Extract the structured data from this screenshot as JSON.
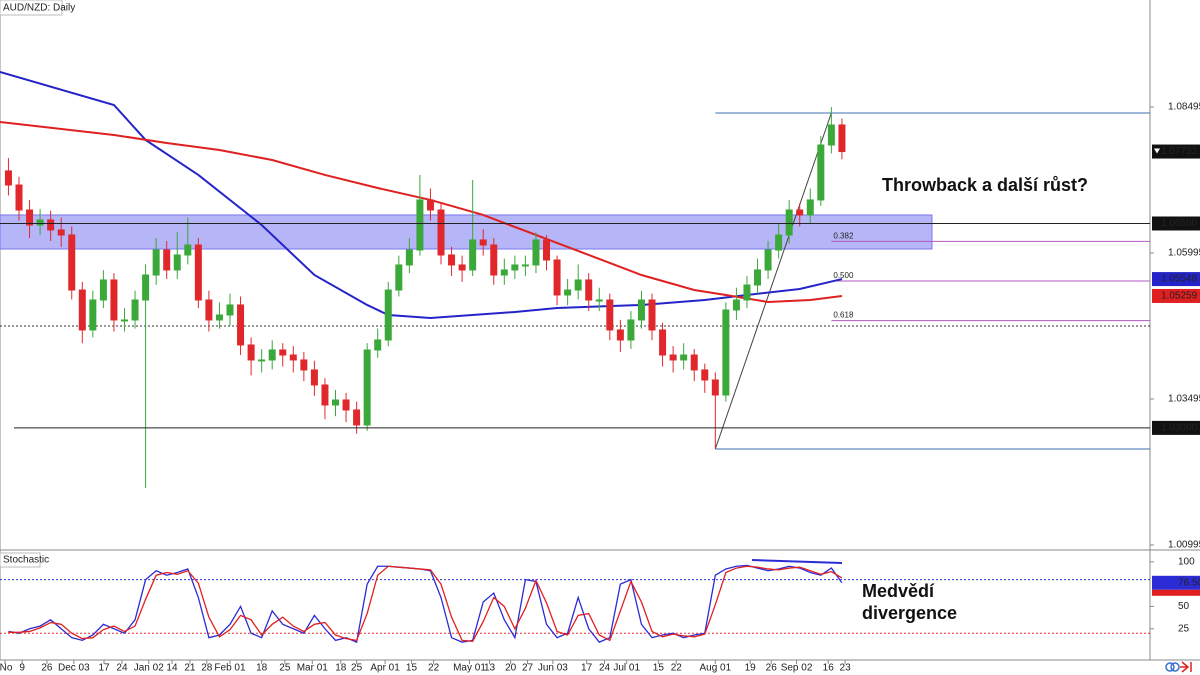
{
  "chart_data": [
    {
      "type": "candlestick",
      "title": "AUD/NZD: Daily",
      "xlim": [
        -0.8,
        108.2
      ],
      "ylim": [
        1.00909,
        1.10327
      ],
      "yticks": [
        1.08495,
        1.05995,
        1.03495,
        1.00995
      ],
      "up_color": "#3aa93a",
      "down_color": "#e0282c",
      "x": [
        0,
        1,
        2,
        3,
        4,
        5,
        6,
        7,
        8,
        9,
        10,
        11,
        12,
        13,
        14,
        15,
        16,
        17,
        18,
        19,
        20,
        21,
        22,
        23,
        24,
        25,
        26,
        27,
        28,
        29,
        30,
        31,
        32,
        33,
        34,
        35,
        36,
        37,
        38,
        39,
        40,
        41,
        42,
        43,
        44,
        45,
        46,
        47,
        48,
        49,
        50,
        51,
        52,
        53,
        54,
        55,
        56,
        57,
        58,
        59,
        60,
        61,
        62,
        63,
        64,
        65,
        66,
        67,
        68,
        69,
        70,
        71,
        72,
        73,
        74,
        75,
        76,
        77,
        78,
        79
      ],
      "open": [
        1.074,
        1.07159,
        1.06731,
        1.06474,
        1.0656,
        1.06389,
        1.06303,
        1.05361,
        1.04677,
        1.0519,
        1.05533,
        1.04848,
        1.04848,
        1.0519,
        1.05618,
        1.06046,
        1.05704,
        1.05961,
        1.06132,
        1.0519,
        1.04848,
        1.04933,
        1.05105,
        1.0442,
        1.04163,
        1.04163,
        1.04334,
        1.04248,
        1.04163,
        1.03992,
        1.03735,
        1.03392,
        1.03478,
        1.03307,
        1.0305,
        1.04334,
        1.04505,
        1.05361,
        1.0579,
        1.06046,
        1.06903,
        1.06731,
        1.05961,
        1.0579,
        1.05704,
        1.06218,
        1.06132,
        1.05618,
        1.05704,
        1.0579,
        1.0579,
        1.06218,
        1.05875,
        1.05276,
        1.05361,
        1.05533,
        1.0519,
        1.0519,
        1.04677,
        1.04505,
        1.04848,
        1.0519,
        1.04677,
        1.04248,
        1.04163,
        1.04248,
        1.03992,
        1.0382,
        1.03563,
        1.05019,
        1.0519,
        1.05447,
        1.05704,
        1.06046,
        1.06303,
        1.06731,
        1.06646,
        1.06903,
        1.07844,
        1.08187
      ],
      "high": [
        1.0762,
        1.073,
        1.069,
        1.0675,
        1.0672,
        1.066,
        1.0645,
        1.055,
        1.0535,
        1.057,
        1.0565,
        1.0505,
        1.0535,
        1.058,
        1.0625,
        1.062,
        1.0635,
        1.066,
        1.0625,
        1.0535,
        1.0515,
        1.053,
        1.0525,
        1.0455,
        1.0435,
        1.045,
        1.0445,
        1.044,
        1.043,
        1.0415,
        1.0385,
        1.0365,
        1.036,
        1.0345,
        1.0445,
        1.047,
        1.055,
        1.0595,
        1.0625,
        1.07331,
        1.071,
        1.0685,
        1.061,
        1.0595,
        1.07245,
        1.064,
        1.0625,
        1.059,
        1.0595,
        1.0595,
        1.0635,
        1.063,
        1.0595,
        1.0555,
        1.058,
        1.0565,
        1.054,
        1.053,
        1.0485,
        1.05,
        1.0535,
        1.053,
        1.048,
        1.044,
        1.0445,
        1.0435,
        1.041,
        1.0395,
        1.0515,
        1.054,
        1.056,
        1.059,
        1.062,
        1.065,
        1.069,
        1.0685,
        1.071,
        1.08,
        1.08495,
        1.083
      ],
      "low": [
        1.0698,
        1.0655,
        1.0625,
        1.063,
        1.062,
        1.061,
        1.052,
        1.0445,
        1.0455,
        1.0505,
        1.0465,
        1.0465,
        1.047,
        1.01971,
        1.0545,
        1.0555,
        1.0555,
        1.058,
        1.0505,
        1.0465,
        1.047,
        1.0475,
        1.0425,
        1.039,
        1.0395,
        1.04,
        1.0405,
        1.0395,
        1.038,
        1.0355,
        1.0315,
        1.032,
        1.031,
        1.029,
        1.0295,
        1.042,
        1.044,
        1.0525,
        1.0565,
        1.0595,
        1.0655,
        1.058,
        1.056,
        1.055,
        1.056,
        1.0595,
        1.0545,
        1.0545,
        1.0555,
        1.056,
        1.0565,
        1.057,
        1.051,
        1.051,
        1.052,
        1.05,
        1.05,
        1.045,
        1.043,
        1.0435,
        1.047,
        1.045,
        1.0405,
        1.0395,
        1.04,
        1.038,
        1.036,
        1.02639,
        1.0345,
        1.0485,
        1.0505,
        1.053,
        1.0555,
        1.059,
        1.0615,
        1.0645,
        1.065,
        1.068,
        1.077,
        1.076
      ],
      "close": [
        1.07159,
        1.06731,
        1.06474,
        1.0656,
        1.06389,
        1.06303,
        1.05361,
        1.04677,
        1.0519,
        1.05533,
        1.04848,
        1.04848,
        1.0519,
        1.05618,
        1.06046,
        1.05704,
        1.05961,
        1.06132,
        1.0519,
        1.04848,
        1.04933,
        1.05105,
        1.0442,
        1.04163,
        1.04163,
        1.04334,
        1.04248,
        1.04163,
        1.03992,
        1.03735,
        1.03392,
        1.03478,
        1.03307,
        1.0305,
        1.04334,
        1.04505,
        1.05361,
        1.0579,
        1.06046,
        1.06903,
        1.06731,
        1.05961,
        1.0579,
        1.05704,
        1.06218,
        1.06132,
        1.05618,
        1.05704,
        1.0579,
        1.0579,
        1.06218,
        1.05875,
        1.05276,
        1.05361,
        1.05533,
        1.0519,
        1.0519,
        1.04677,
        1.04505,
        1.04848,
        1.0519,
        1.04677,
        1.04248,
        1.04163,
        1.04248,
        1.03992,
        1.0382,
        1.03563,
        1.05019,
        1.0519,
        1.05447,
        1.05704,
        1.06046,
        1.06303,
        1.06731,
        1.06646,
        1.06903,
        1.07844,
        1.08187,
        1.07732
      ],
      "overlays": [
        {
          "color": "#2424c8",
          "x": [
            -0.8,
            10,
            13,
            18,
            24,
            29,
            34,
            36,
            40,
            48,
            52,
            60,
            66,
            70,
            75,
            79
          ],
          "values": [
            1.09094,
            1.08529,
            1.0793,
            1.07331,
            1.06474,
            1.05618,
            1.05105,
            1.04933,
            1.04882,
            1.04985,
            1.05053,
            1.05105,
            1.0519,
            1.05276,
            1.05379,
            1.05548
          ]
        },
        {
          "color": "#e02020",
          "x": [
            -0.8,
            10,
            15,
            20,
            25,
            30,
            35,
            40,
            45,
            50,
            55,
            60,
            65,
            68,
            72,
            76,
            79
          ],
          "values": [
            1.08238,
            1.08016,
            1.07879,
            1.07759,
            1.07587,
            1.07331,
            1.07108,
            1.06903,
            1.06646,
            1.06303,
            1.05961,
            1.05618,
            1.05361,
            1.05276,
            1.05156,
            1.0519,
            1.05259
          ]
        }
      ],
      "zone": [
        1.06063,
        1.06646
      ],
      "zone_color": "#7878f0",
      "dotted_level": 1.04745,
      "price_labels": [
        {
          "value": 1.07732,
          "color": "#111111"
        },
        {
          "value": {
            "value": 1.065,
            "label": "1.06500"
          },
          "color": "#111111",
          "line": true
        },
        {
          "value": 1.05548,
          "color": "#2424c8"
        },
        {
          "value": 1.05259,
          "color": "#e02020"
        },
        {
          "value": {
            "value": 1.03,
            "label": "1.03000"
          },
          "color": "#111111",
          "line": true
        }
      ],
      "fib": {
        "high": 1.08392,
        "low": 1.02639,
        "x": [
          67,
          78
        ],
        "color": "#b05ac0",
        "edge_color": "#3a6fb0",
        "levels": [
          0.382,
          {
            "value": 0.5,
            "label": "0.500"
          },
          0.618
        ]
      },
      "annotation": "Throwback a další růst?"
    },
    {
      "type": "line",
      "title": "Stochastic",
      "xlim": [
        -0.8,
        108.2
      ],
      "ylim": [
        -10,
        111
      ],
      "yticks": [
        100,
        50,
        25
      ],
      "x": [
        0,
        1,
        2,
        3,
        4,
        5,
        6,
        7,
        8,
        9,
        10,
        11,
        12,
        13,
        14,
        15,
        16,
        17,
        18,
        19,
        20,
        21,
        22,
        23,
        24,
        25,
        26,
        27,
        28,
        29,
        30,
        31,
        32,
        33,
        34,
        35,
        36,
        37,
        38,
        39,
        40,
        41,
        42,
        43,
        44,
        45,
        46,
        47,
        48,
        49,
        50,
        51,
        52,
        53,
        54,
        55,
        56,
        57,
        58,
        59,
        60,
        61,
        62,
        63,
        64,
        65,
        66,
        67,
        68,
        69,
        70,
        71,
        72,
        73,
        74,
        75,
        76,
        77,
        78,
        79
      ],
      "series": [
        {
          "color": "#2c2cd6",
          "values": [
            22,
            20,
            25,
            28,
            35,
            25,
            15,
            12,
            18,
            30,
            25,
            20,
            35,
            80,
            90,
            85,
            88,
            92,
            60,
            15,
            18,
            30,
            50,
            20,
            15,
            45,
            30,
            25,
            20,
            40,
            25,
            12,
            15,
            10,
            75,
            95,
            95,
            94,
            93,
            92,
            90,
            60,
            15,
            10,
            12,
            55,
            65,
            35,
            15,
            80,
            78,
            30,
            15,
            20,
            60,
            25,
            10,
            15,
            75,
            80,
            30,
            15,
            18,
            20,
            15,
            18,
            20,
            85,
            92,
            95,
            96,
            93,
            90,
            92,
            95,
            93,
            88,
            85,
            93,
            76.5
          ]
        },
        {
          "color": "#e02020",
          "values": [
            21,
            21,
            22,
            26,
            32,
            30,
            20,
            14,
            15,
            24,
            28,
            22,
            28,
            58,
            85,
            88,
            86,
            90,
            76,
            38,
            16,
            24,
            40,
            35,
            18,
            30,
            38,
            28,
            22,
            30,
            32,
            18,
            14,
            12,
            42,
            85,
            95,
            94,
            93,
            92,
            91,
            75,
            38,
            12,
            11,
            33,
            60,
            50,
            25,
            48,
            79,
            54,
            22,
            18,
            40,
            42,
            18,
            12,
            45,
            78,
            55,
            22,
            16,
            19,
            17,
            16,
            19,
            52,
            88,
            93,
            95,
            94,
            92,
            91,
            93,
            94,
            90,
            86,
            89,
            82
          ]
        }
      ],
      "levels": [
        {
          "value": 80,
          "color": "#3333cc"
        },
        {
          "value": 20,
          "color": "#e03030"
        }
      ],
      "current": {
        "value": {
          "value": 76.5,
          "label": "76.50"
        },
        "color": "#2c2cd6"
      },
      "xticks": [
        {
          "value": -0.33,
          "label": "No"
        },
        {
          "value": 1.3,
          "label": "9"
        },
        {
          "value": 3.65,
          "label": "26"
        },
        {
          "value": 6.2,
          "label": "Dec 03"
        },
        {
          "value": 9.06,
          "label": "17"
        },
        {
          "value": 10.76,
          "label": "24"
        },
        {
          "value": 13.3,
          "label": "Jan 02"
        },
        {
          "value": 15.5,
          "label": "14"
        },
        {
          "value": 17.2,
          "label": "21"
        },
        {
          "value": 18.8,
          "label": "28"
        },
        {
          "value": 21.0,
          "label": "Feb 01"
        },
        {
          "value": 24.0,
          "label": "18"
        },
        {
          "value": 26.2,
          "label": "25"
        },
        {
          "value": 28.8,
          "label": "Mar 01"
        },
        {
          "value": 31.5,
          "label": "18"
        },
        {
          "value": 33.0,
          "label": "25"
        },
        {
          "value": 35.7,
          "label": "Apr 01"
        },
        {
          "value": 38.2,
          "label": "15"
        },
        {
          "value": 40.3,
          "label": "22"
        },
        {
          "value": 43.7,
          "label": "May 01"
        },
        {
          "value": 45.6,
          "label": "13"
        },
        {
          "value": 47.6,
          "label": "20"
        },
        {
          "value": 49.2,
          "label": "27"
        },
        {
          "value": 51.6,
          "label": "Jun 03"
        },
        {
          "value": 54.8,
          "label": "17"
        },
        {
          "value": 56.5,
          "label": "24"
        },
        {
          "value": 58.6,
          "label": "Jul 01"
        },
        {
          "value": 61.6,
          "label": "15"
        },
        {
          "value": 63.3,
          "label": "22"
        },
        {
          "value": 67.0,
          "label": "Aug 01"
        },
        {
          "value": 70.3,
          "label": "19"
        },
        {
          "value": 72.3,
          "label": "26"
        },
        {
          "value": 74.7,
          "label": "Sep 02"
        },
        {
          "value": 77.7,
          "label": "16"
        },
        {
          "value": 79.3,
          "label": "23"
        }
      ],
      "annotation": [
        "Medvědí",
        "divergence"
      ]
    }
  ]
}
